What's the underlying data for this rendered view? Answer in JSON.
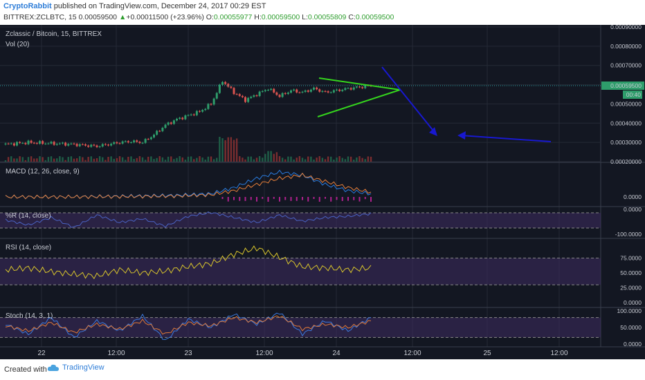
{
  "header": {
    "author": "CryptoRabbit",
    "published": " published on TradingView.com, December 24, 2017 00:29 EST",
    "symbol": "BITTREX:ZCLBTC, 15",
    "last": "0.00059500",
    "change": "+0.00011500 (+23.96%)",
    "o_label": "O:",
    "o": "0.00055977",
    "h_label": "H:",
    "h": "0.00059500",
    "l_label": "L:",
    "l": "0.00055809",
    "c_label": "C:",
    "c": "0.00059500"
  },
  "footer": {
    "created": "Created with",
    "brand": "TradingView",
    "brand_icon": "tradingview-cloud-icon"
  },
  "colors": {
    "bg": "#131722",
    "grid": "#252a36",
    "up": "#2e9d6b",
    "down": "#d9534f",
    "triangle": "#35d51d",
    "arrow": "#1818d0",
    "resistance": "#2aa6a6",
    "macd": "#2a7de1",
    "signal": "#e8803a",
    "hist": "#b0208e",
    "wr": "#4a63c4",
    "rsi": "#d8c52c",
    "stoch_k": "#3d7be0",
    "stoch_d": "#e07a3a",
    "band": "#3a2a5c"
  },
  "chart_data": [
    {
      "type": "line",
      "title": "Zclassic / Bitcoin, 15, BITTREX",
      "subtitle": "Vol (20)",
      "x_ticks": [
        "22",
        "12:00",
        "23",
        "12:00",
        "24",
        "12:00",
        "25",
        "12:00"
      ],
      "y_ticks": [
        "0.00090000",
        "0.00080000",
        "0.00070000",
        "0.00060000",
        "0.00050000",
        "0.00040000",
        "0.00030000",
        "0.00020000"
      ],
      "ylim": [
        0.0002,
        0.0009
      ],
      "last_price_tag": "0.00059500",
      "countdown_tag": "00:40",
      "series": [
        {
          "x": [
            0,
            8,
            16,
            24,
            32,
            40,
            44,
            48,
            52,
            56,
            60,
            64,
            68,
            72,
            76,
            80,
            84,
            88,
            92,
            96,
            100,
            104,
            108,
            112,
            116,
            120,
            128
          ],
          "values": [
            0.00029,
            0.0003,
            0.000295,
            0.00029,
            0.00028,
            0.0003,
            0.000305,
            0.0003,
            0.00034,
            0.00039,
            0.00042,
            0.00044,
            0.00046,
            0.0005,
            0.00062,
            0.00056,
            0.00052,
            0.00055,
            0.00058,
            0.00054,
            0.00057,
            0.00056,
            0.00058,
            0.00056,
            0.00057,
            0.00058,
            0.000595
          ]
        }
      ],
      "annotations": [
        "symmetrical triangle",
        "projected breakdown arrow",
        "target arrow"
      ]
    },
    {
      "type": "line",
      "title": "MACD (12, 26, close, 9)",
      "y_ticks": [
        "0.0000"
      ],
      "series": [
        {
          "x": [
            0,
            20,
            40,
            60,
            72,
            80,
            88,
            96,
            104,
            112,
            120,
            128
          ],
          "values": [
            0,
            0,
            2e-06,
            5e-06,
            1e-05,
            3e-05,
            6e-05,
            8e-05,
            7e-05,
            4e-05,
            2e-05,
            1e-05
          ]
        },
        {
          "x": [
            0,
            20,
            40,
            60,
            72,
            80,
            88,
            96,
            104,
            112,
            120,
            128
          ],
          "values": [
            0,
            0,
            1e-06,
            3e-06,
            7e-06,
            2e-05,
            4e-05,
            6e-05,
            7e-05,
            5e-05,
            3e-05,
            1.5e-05
          ]
        }
      ]
    },
    {
      "type": "line",
      "title": "%R (14, close)",
      "y_ticks": [
        "0.0000",
        "-100.0000"
      ],
      "series": [
        {
          "x": [
            0,
            8,
            16,
            24,
            32,
            40,
            48,
            56,
            64,
            72,
            80,
            88,
            96,
            104,
            112,
            120,
            128
          ],
          "values": [
            -40,
            -60,
            -30,
            -70,
            -20,
            -50,
            -35,
            -65,
            -25,
            -10,
            -30,
            -50,
            -20,
            -45,
            -30,
            -25,
            -15
          ]
        }
      ]
    },
    {
      "type": "line",
      "title": "RSI (14, close)",
      "y_ticks": [
        "75.0000",
        "50.0000",
        "25.0000",
        "0.0000"
      ],
      "series": [
        {
          "x": [
            0,
            8,
            16,
            24,
            32,
            40,
            48,
            56,
            64,
            72,
            80,
            88,
            96,
            104,
            112,
            120,
            128
          ],
          "values": [
            55,
            58,
            52,
            48,
            45,
            55,
            50,
            53,
            60,
            65,
            80,
            90,
            75,
            60,
            58,
            55,
            58
          ]
        }
      ]
    },
    {
      "type": "line",
      "title": "Stoch (14, 3, 1)",
      "y_ticks": [
        "100.0000",
        "50.0000",
        "0.0000"
      ],
      "series": [
        {
          "x": [
            0,
            8,
            16,
            24,
            32,
            40,
            48,
            56,
            64,
            72,
            80,
            88,
            96,
            104,
            112,
            120,
            128
          ],
          "values": [
            60,
            30,
            80,
            20,
            70,
            40,
            85,
            10,
            75,
            50,
            90,
            60,
            95,
            30,
            70,
            40,
            80
          ]
        },
        {
          "x": [
            0,
            8,
            16,
            24,
            32,
            40,
            48,
            56,
            64,
            72,
            80,
            88,
            96,
            104,
            112,
            120,
            128
          ],
          "values": [
            55,
            40,
            65,
            35,
            60,
            45,
            70,
            30,
            65,
            55,
            80,
            65,
            85,
            45,
            60,
            50,
            70
          ]
        }
      ]
    }
  ]
}
